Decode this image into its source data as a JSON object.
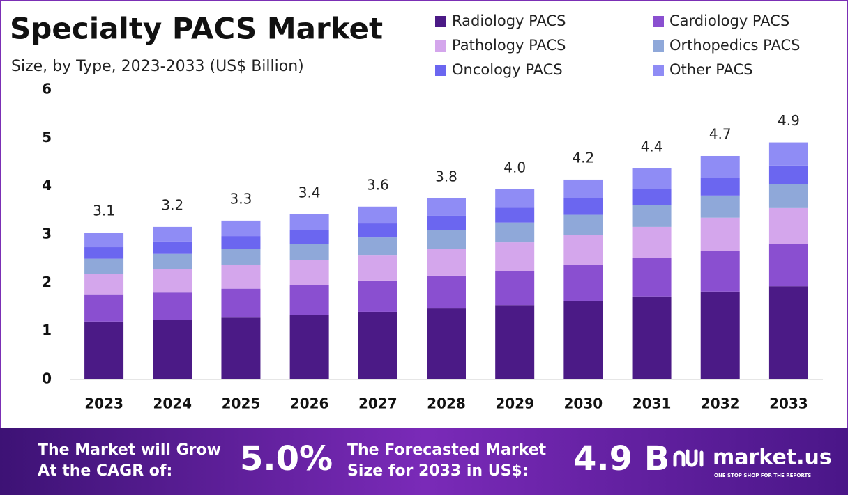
{
  "chart_data": {
    "type": "stacked-bar",
    "title": "Specialty PACS Market",
    "subtitle": "Size, by Type, 2023-2033 (US$ Billion)",
    "categories": [
      "2023",
      "2024",
      "2025",
      "2026",
      "2027",
      "2028",
      "2029",
      "2030",
      "2031",
      "2032",
      "2033"
    ],
    "series": [
      {
        "name": "Radiology PACS",
        "color": "#4b1a86",
        "values": [
          1.2,
          1.24,
          1.28,
          1.34,
          1.4,
          1.47,
          1.54,
          1.63,
          1.72,
          1.82,
          1.93
        ]
      },
      {
        "name": "Cardiology PACS",
        "color": "#8a4fd0",
        "values": [
          0.55,
          0.56,
          0.6,
          0.62,
          0.65,
          0.68,
          0.71,
          0.75,
          0.79,
          0.84,
          0.88
        ]
      },
      {
        "name": "Pathology PACS",
        "color": "#d4a6ec",
        "values": [
          0.44,
          0.48,
          0.5,
          0.52,
          0.53,
          0.56,
          0.59,
          0.62,
          0.65,
          0.69,
          0.74
        ]
      },
      {
        "name": "Orthopedics PACS",
        "color": "#8fa8d9",
        "values": [
          0.31,
          0.32,
          0.32,
          0.33,
          0.36,
          0.38,
          0.41,
          0.41,
          0.45,
          0.46,
          0.49
        ]
      },
      {
        "name": "Oncology PACS",
        "color": "#6b66f0",
        "values": [
          0.24,
          0.26,
          0.27,
          0.29,
          0.29,
          0.3,
          0.31,
          0.34,
          0.34,
          0.37,
          0.39
        ]
      },
      {
        "name": "Other PACS",
        "color": "#8f8cf5",
        "values": [
          0.3,
          0.3,
          0.32,
          0.32,
          0.35,
          0.36,
          0.38,
          0.39,
          0.42,
          0.45,
          0.48
        ]
      }
    ],
    "totals": [
      3.1,
      3.2,
      3.3,
      3.4,
      3.6,
      3.8,
      {
        "value": 4.0,
        "label": "4.0"
      },
      4.2,
      4.4,
      4.7,
      4.9
    ],
    "ylim": [
      0,
      6
    ],
    "yticks": [
      0,
      1,
      2,
      3,
      4,
      5,
      6
    ],
    "grid": false
  },
  "banner": {
    "cagr_text": [
      "The Market will Grow",
      "At the CAGR of:"
    ],
    "cagr": "5.0%",
    "size_text": [
      "The Forecasted Market",
      "Size for 2033 in US$:"
    ],
    "size": "4.9 B",
    "logo": "market.us",
    "tagline": "ONE STOP SHOP FOR THE REPORTS"
  }
}
